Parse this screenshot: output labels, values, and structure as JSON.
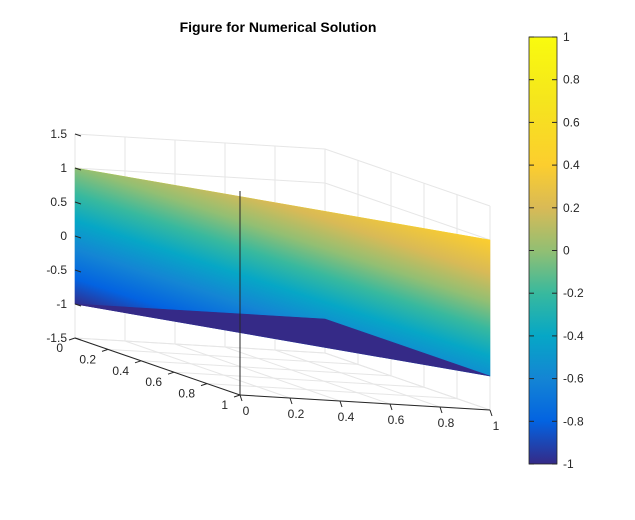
{
  "chart_data": {
    "type": "surface",
    "title": "Figure for Numerical Solution",
    "xlabel": "",
    "ylabel": "",
    "zlabel": "",
    "grid": true,
    "colormap": "parula",
    "colorbar": {
      "placement": "right",
      "range": [
        -1,
        1
      ],
      "ticks": [
        1,
        0.8,
        0.6,
        0.4,
        0.2,
        0,
        -0.2,
        -0.4,
        -0.6,
        -0.8,
        -1
      ],
      "tick_labels": [
        "1",
        "0.8",
        "0.6",
        "0.4",
        "0.2",
        "0",
        "-0.2",
        "-0.4",
        "-0.6",
        "-0.8",
        "-1"
      ]
    },
    "x_axis": {
      "range": [
        0,
        1
      ],
      "ticks": [
        0,
        0.2,
        0.4,
        0.6,
        0.8,
        1
      ],
      "tick_labels": [
        "0",
        "0.2",
        "0.4",
        "0.6",
        "0.8",
        "1"
      ]
    },
    "y_axis": {
      "range": [
        0,
        1
      ],
      "ticks": [
        0,
        0.2,
        0.4,
        0.6,
        0.8,
        1
      ],
      "tick_labels": [
        "0",
        "0.2",
        "0.4",
        "0.6",
        "0.8",
        "1"
      ]
    },
    "z_axis": {
      "range": [
        -1.5,
        1.5
      ],
      "ticks": [
        1.5,
        1,
        0.5,
        0,
        -0.5,
        -1,
        -1.5
      ],
      "tick_labels": [
        "1.5",
        "1",
        "0.5",
        "0",
        "-0.5",
        "-1",
        "-1.5"
      ]
    },
    "surface_values": [
      {
        "x": 0,
        "y": 0,
        "z": 1
      },
      {
        "x": 1,
        "y": 0,
        "z": 1
      },
      {
        "x": 0,
        "y": 1,
        "z": 1
      },
      {
        "x": 0.5,
        "y": 0.5,
        "z": 1
      },
      {
        "x": 0.5,
        "y": 0.5,
        "z": -1
      },
      {
        "x": 1,
        "y": 0,
        "z": -1
      },
      {
        "x": 0,
        "y": 1,
        "z": -1
      },
      {
        "x": 1,
        "y": 1,
        "z": -1
      }
    ]
  }
}
